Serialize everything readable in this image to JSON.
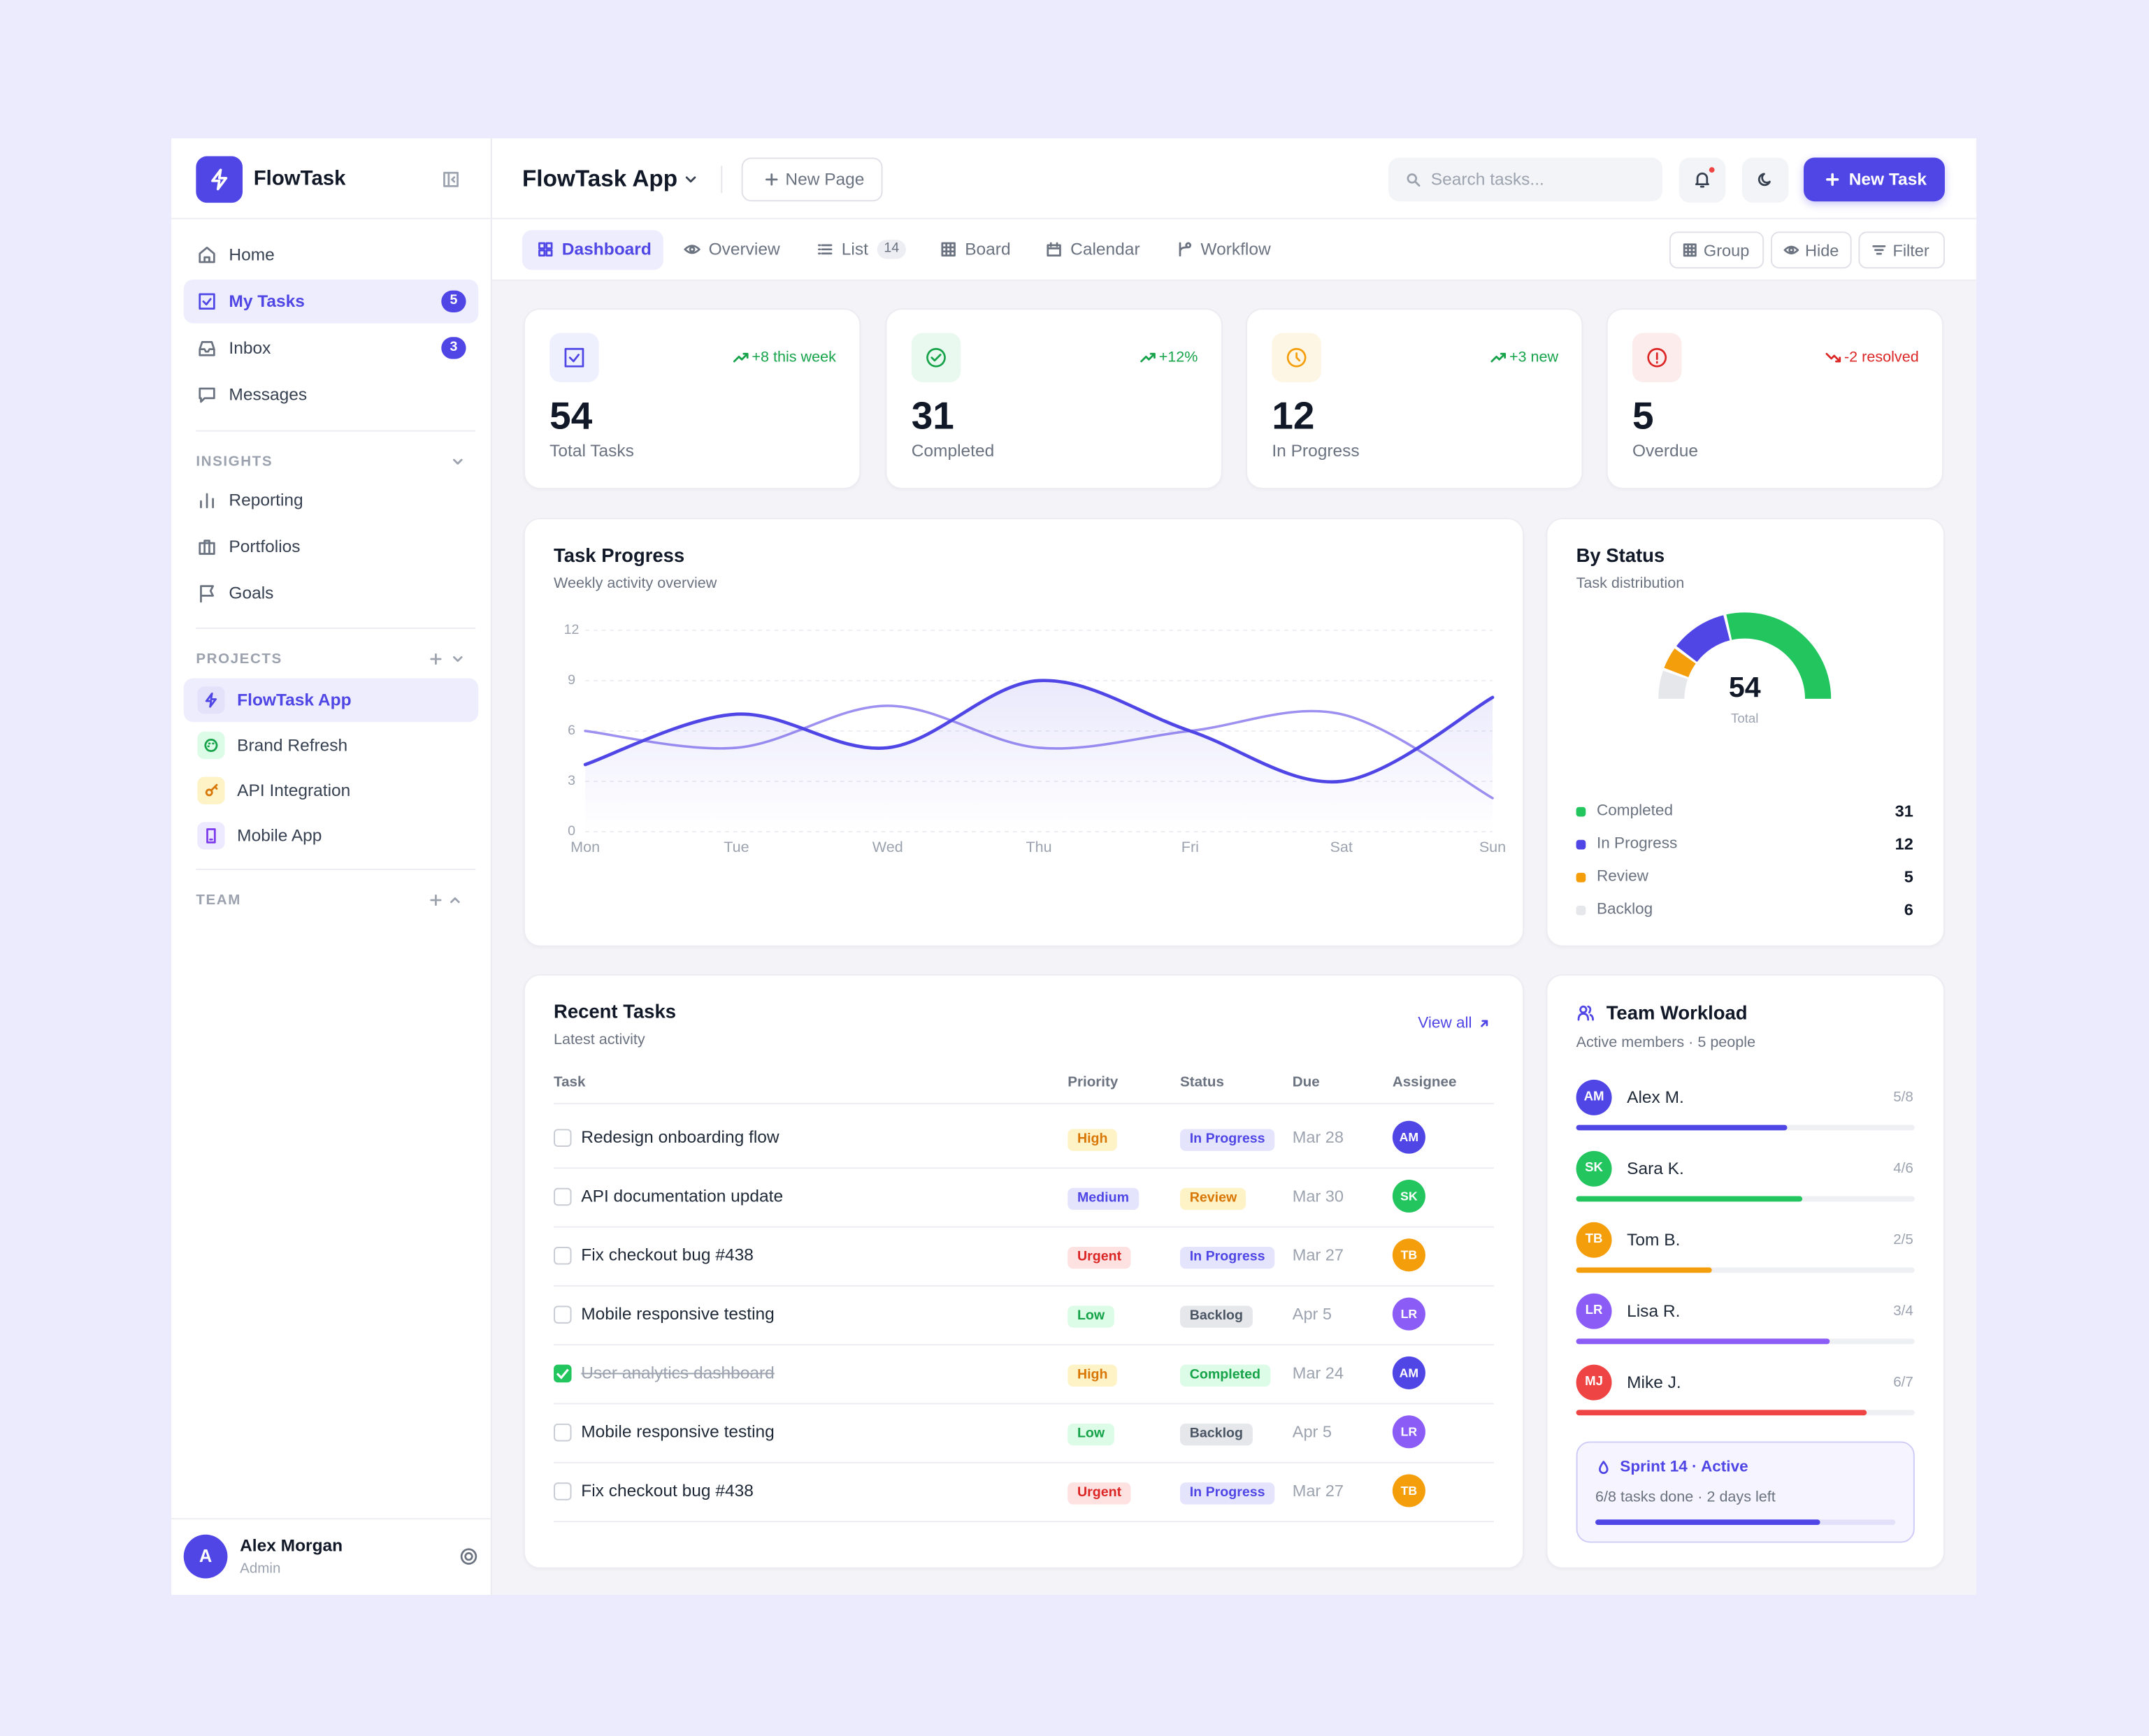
{
  "brand": "FlowTask",
  "sidebar": {
    "nav": [
      {
        "label": "Home",
        "icon": "home"
      },
      {
        "label": "My Tasks",
        "badge": 5,
        "icon": "check",
        "active": true
      },
      {
        "label": "Inbox",
        "badge": 3,
        "icon": "inbox"
      },
      {
        "label": "Messages",
        "icon": "msg"
      }
    ],
    "insights_title": "INSIGHTS",
    "insights": [
      {
        "label": "Reporting",
        "icon": "bars"
      },
      {
        "label": "Portfolios",
        "icon": "brief"
      },
      {
        "label": "Goals",
        "icon": "flag"
      }
    ],
    "projects_title": "PROJECTS",
    "projects": [
      {
        "label": "FlowTask App",
        "icon": "bolt",
        "color": "#4f46e5",
        "bg": "#e4e2fb",
        "active": true
      },
      {
        "label": "Brand Refresh",
        "icon": "palette",
        "color": "#16a34a",
        "bg": "#dcfce7"
      },
      {
        "label": "API Integration",
        "icon": "key",
        "color": "#d97706",
        "bg": "#fef3c7"
      },
      {
        "label": "Mobile App",
        "icon": "phone",
        "color": "#7c3aed",
        "bg": "#ede9fe"
      }
    ],
    "team_title": "TEAM",
    "user": {
      "initial": "A",
      "name": "Alex Morgan",
      "role": "Admin"
    }
  },
  "header": {
    "title": "FlowTask App",
    "new_page": "New Page",
    "search_placeholder": "Search tasks...",
    "new_task": "New Task"
  },
  "tabs": [
    {
      "label": "Dashboard",
      "icon": "dash",
      "active": true
    },
    {
      "label": "Overview",
      "icon": "eye"
    },
    {
      "label": "List",
      "icon": "list",
      "badge": 14
    },
    {
      "label": "Board",
      "icon": "grid"
    },
    {
      "label": "Calendar",
      "icon": "cal"
    },
    {
      "label": "Workflow",
      "icon": "flow"
    }
  ],
  "view_buttons": [
    {
      "label": "Group",
      "icon": "grid"
    },
    {
      "label": "Hide",
      "icon": "eye"
    },
    {
      "label": "Filter",
      "icon": "filter"
    }
  ],
  "stats": [
    {
      "value": 54,
      "label": "Total Tasks",
      "change": "+8 this week",
      "trend": "up",
      "icon": "check",
      "color": "#4f46e5",
      "bg": "#eef0fe"
    },
    {
      "value": 31,
      "label": "Completed",
      "change": "+12%",
      "trend": "up",
      "icon": "ccheck",
      "color": "#16a34a",
      "bg": "#e9f9ef"
    },
    {
      "value": 12,
      "label": "In Progress",
      "change": "+3 new",
      "trend": "up",
      "icon": "clock",
      "color": "#f59e0b",
      "bg": "#fef6e4"
    },
    {
      "value": 5,
      "label": "Overdue",
      "change": "-2 resolved",
      "trend": "down",
      "icon": "alert",
      "color": "#dc2626",
      "bg": "#fdecec"
    }
  ],
  "chart_data": [
    {
      "type": "line",
      "title": "Task Progress",
      "subtitle": "Weekly activity overview",
      "categories": [
        "Mon",
        "Tue",
        "Wed",
        "Thu",
        "Fri",
        "Sat",
        "Sun"
      ],
      "series": [
        {
          "color": "#4f46e5",
          "values": [
            4,
            7,
            5,
            9,
            6,
            3,
            8
          ],
          "area": true
        },
        {
          "color": "#9d90f0",
          "values": [
            6,
            5,
            7.5,
            5,
            6,
            7,
            2
          ]
        }
      ],
      "ylim": [
        0,
        12
      ],
      "yticks": [
        0,
        3,
        6,
        9,
        12
      ],
      "grid": true
    },
    {
      "type": "donut",
      "title": "By Status",
      "subtitle": "Task distribution",
      "categories": [
        "Completed",
        "In Progress",
        "Review",
        "Backlog"
      ],
      "values": [
        31,
        12,
        5,
        6
      ],
      "colors": [
        "#22c55e",
        "#4f46e5",
        "#f59e0b",
        "#e5e7eb"
      ],
      "center_value": 54,
      "center_label": "Total"
    }
  ],
  "recent_tasks": {
    "title": "Recent Tasks",
    "subtitle": "Latest activity",
    "view_all": "View all",
    "columns": [
      "Task",
      "Priority",
      "Status",
      "Due",
      "Assignee"
    ],
    "rows": [
      {
        "task": "Redesign onboarding flow",
        "priority": {
          "label": "High",
          "tone": "amber"
        },
        "status": {
          "label": "In Progress",
          "tone": "indigo"
        },
        "due": "Mar 28",
        "assignee": {
          "initials": "AM",
          "color": "#4f46e5"
        },
        "done": false
      },
      {
        "task": "API documentation update",
        "priority": {
          "label": "Medium",
          "tone": "indigo"
        },
        "status": {
          "label": "Review",
          "tone": "amber"
        },
        "due": "Mar 30",
        "assignee": {
          "initials": "SK",
          "color": "#22c55e"
        },
        "done": false
      },
      {
        "task": "Fix checkout bug #438",
        "priority": {
          "label": "Urgent",
          "tone": "red"
        },
        "status": {
          "label": "In Progress",
          "tone": "indigo"
        },
        "due": "Mar 27",
        "assignee": {
          "initials": "TB",
          "color": "#f59e0b"
        },
        "done": false
      },
      {
        "task": "Mobile responsive testing",
        "priority": {
          "label": "Low",
          "tone": "green"
        },
        "status": {
          "label": "Backlog",
          "tone": "gray"
        },
        "due": "Apr 5",
        "assignee": {
          "initials": "LR",
          "color": "#8b5cf6"
        },
        "done": false
      },
      {
        "task": "User analytics dashboard",
        "priority": {
          "label": "High",
          "tone": "amber"
        },
        "status": {
          "label": "Completed",
          "tone": "green"
        },
        "due": "Mar 24",
        "assignee": {
          "initials": "AM",
          "color": "#4f46e5"
        },
        "done": true
      },
      {
        "task": "Mobile responsive testing",
        "priority": {
          "label": "Low",
          "tone": "green"
        },
        "status": {
          "label": "Backlog",
          "tone": "gray"
        },
        "due": "Apr 5",
        "assignee": {
          "initials": "LR",
          "color": "#8b5cf6"
        },
        "done": false
      },
      {
        "task": "Fix checkout bug #438",
        "priority": {
          "label": "Urgent",
          "tone": "red"
        },
        "status": {
          "label": "In Progress",
          "tone": "indigo"
        },
        "due": "Mar 27",
        "assignee": {
          "initials": "TB",
          "color": "#f59e0b"
        },
        "done": false
      }
    ]
  },
  "team": {
    "title": "Team Workload",
    "subtitle": "Active members · 5 people",
    "members": [
      {
        "initials": "AM",
        "name": "Alex M.",
        "label": "5/8",
        "done": 5,
        "total": 8,
        "color": "#4f46e5"
      },
      {
        "initials": "SK",
        "name": "Sara K.",
        "label": "4/6",
        "done": 4,
        "total": 6,
        "color": "#22c55e"
      },
      {
        "initials": "TB",
        "name": "Tom B.",
        "label": "2/5",
        "done": 2,
        "total": 5,
        "color": "#f59e0b"
      },
      {
        "initials": "LR",
        "name": "Lisa R.",
        "label": "3/4",
        "done": 3,
        "total": 4,
        "color": "#8b5cf6"
      },
      {
        "initials": "MJ",
        "name": "Mike J.",
        "label": "6/7",
        "done": 6,
        "total": 7,
        "color": "#ef4444"
      }
    ],
    "sprint": {
      "title": "Sprint 14 · Active",
      "detail": "6/8 tasks done · 2 days left",
      "done": 6,
      "total": 8
    }
  }
}
